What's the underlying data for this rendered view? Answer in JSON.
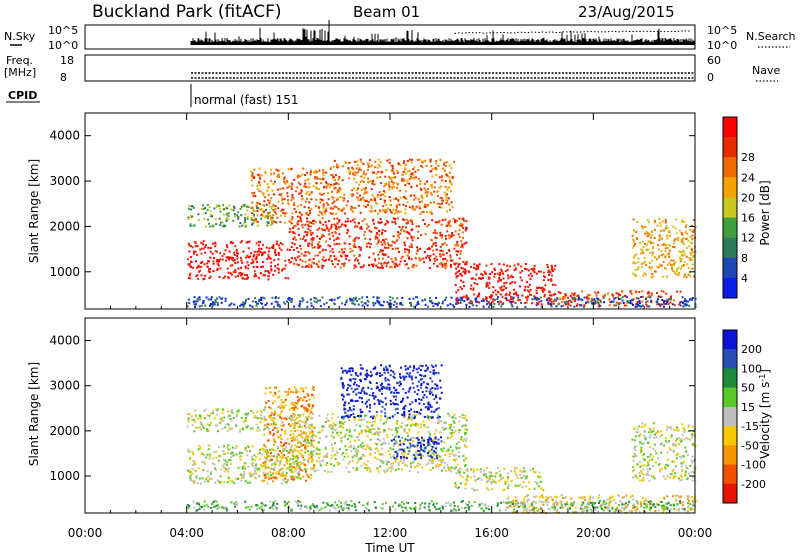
{
  "header": {
    "station": "Buckland Park (fitACF)",
    "beam": "Beam 01",
    "date": "23/Aug/2015"
  },
  "panels": {
    "nsky": {
      "left_label": "N.Sky",
      "right_label": "N.Search",
      "ticks_left": [
        "10^5",
        "10^0"
      ],
      "ticks_right": [
        "10^5",
        "10^0"
      ]
    },
    "freq": {
      "left_label_1": "Freq.",
      "left_label_2": "[MHz]",
      "ticks_left": [
        "18",
        "8"
      ],
      "ticks_right": [
        "60",
        "0"
      ],
      "right_label": "Nave"
    },
    "cpid": {
      "label": "CPID",
      "mode": "normal (fast) 151"
    }
  },
  "chart_data": [
    {
      "type": "heatmap",
      "parameter": "power",
      "ylabel": "Slant Range [km]",
      "ylim": [
        180,
        4500
      ],
      "yticks": [
        "1000",
        "2000",
        "3000",
        "4000"
      ],
      "xlim_hours": [
        0,
        24
      ],
      "colorbar": {
        "label": "Power [dB]",
        "ticks": [
          "4",
          "8",
          "12",
          "16",
          "20",
          "24",
          "28"
        ],
        "colors": [
          "#0a1ee6",
          "#1e46b4",
          "#2f7a5a",
          "#3f9e3f",
          "#c9c820",
          "#f5a500",
          "#f06a00",
          "#e82a00",
          "#ff0000"
        ]
      },
      "scatter_regions": [
        {
          "t_start": 4.0,
          "t_end": 8.0,
          "r_low": 850,
          "r_high": 1700,
          "level": 8
        },
        {
          "t_start": 4.0,
          "t_end": 7.5,
          "r_low": 2000,
          "r_high": 2500,
          "level": 3
        },
        {
          "t_start": 6.5,
          "t_end": 9.5,
          "r_low": 2100,
          "r_high": 3300,
          "level": 6
        },
        {
          "t_start": 8.0,
          "t_end": 15.0,
          "r_low": 1100,
          "r_high": 2200,
          "level": 7
        },
        {
          "t_start": 9.5,
          "t_end": 14.5,
          "r_low": 2300,
          "r_high": 3500,
          "level": 6
        },
        {
          "t_start": 14.5,
          "t_end": 18.5,
          "r_low": 300,
          "r_high": 1200,
          "level": 8
        },
        {
          "t_start": 18.5,
          "t_end": 23.5,
          "r_low": 250,
          "r_high": 600,
          "level": 7
        },
        {
          "t_start": 21.5,
          "t_end": 24.0,
          "r_low": 900,
          "r_high": 2200,
          "level": 5
        }
      ]
    },
    {
      "type": "heatmap",
      "parameter": "velocity",
      "ylabel": "Slant Range [km]",
      "ylim": [
        180,
        4500
      ],
      "yticks": [
        "1000",
        "2000",
        "3000",
        "4000"
      ],
      "xlim_hours": [
        0,
        24
      ],
      "xticks": [
        "00:00",
        "04:00",
        "08:00",
        "12:00",
        "16:00",
        "20:00",
        "00:00"
      ],
      "xlabel": "Time UT",
      "colorbar": {
        "label": "Velocity [m s^-1]",
        "ticks": [
          "200",
          "100",
          "50",
          "15",
          "-15",
          "-50",
          "-100",
          "-200"
        ],
        "colors": [
          "#0a14d2",
          "#2850b4",
          "#1e8c3c",
          "#5ac828",
          "#bebebe",
          "#f5c800",
          "#f59600",
          "#f05000",
          "#e61400"
        ]
      },
      "scatter_regions": [
        {
          "t_start": 4.0,
          "t_end": 8.5,
          "r_low": 850,
          "r_high": 1700,
          "level": 4
        },
        {
          "t_start": 4.0,
          "t_end": 7.5,
          "r_low": 2000,
          "r_high": 2500,
          "level": 4
        },
        {
          "t_start": 7.0,
          "t_end": 9.0,
          "r_low": 900,
          "r_high": 3000,
          "level": 6
        },
        {
          "t_start": 8.0,
          "t_end": 15.0,
          "r_low": 1100,
          "r_high": 2400,
          "level": 4
        },
        {
          "t_start": 10.0,
          "t_end": 14.0,
          "r_low": 2300,
          "r_high": 3500,
          "level": 0
        },
        {
          "t_start": 12.0,
          "t_end": 14.0,
          "r_low": 1400,
          "r_high": 1900,
          "level": 0
        },
        {
          "t_start": 14.5,
          "t_end": 18.0,
          "r_low": 700,
          "r_high": 1200,
          "level": 4
        },
        {
          "t_start": 16.5,
          "t_end": 24.0,
          "r_low": 200,
          "r_high": 600,
          "level": 5
        },
        {
          "t_start": 21.5,
          "t_end": 24.0,
          "r_low": 900,
          "r_high": 2200,
          "level": 4
        }
      ]
    }
  ]
}
